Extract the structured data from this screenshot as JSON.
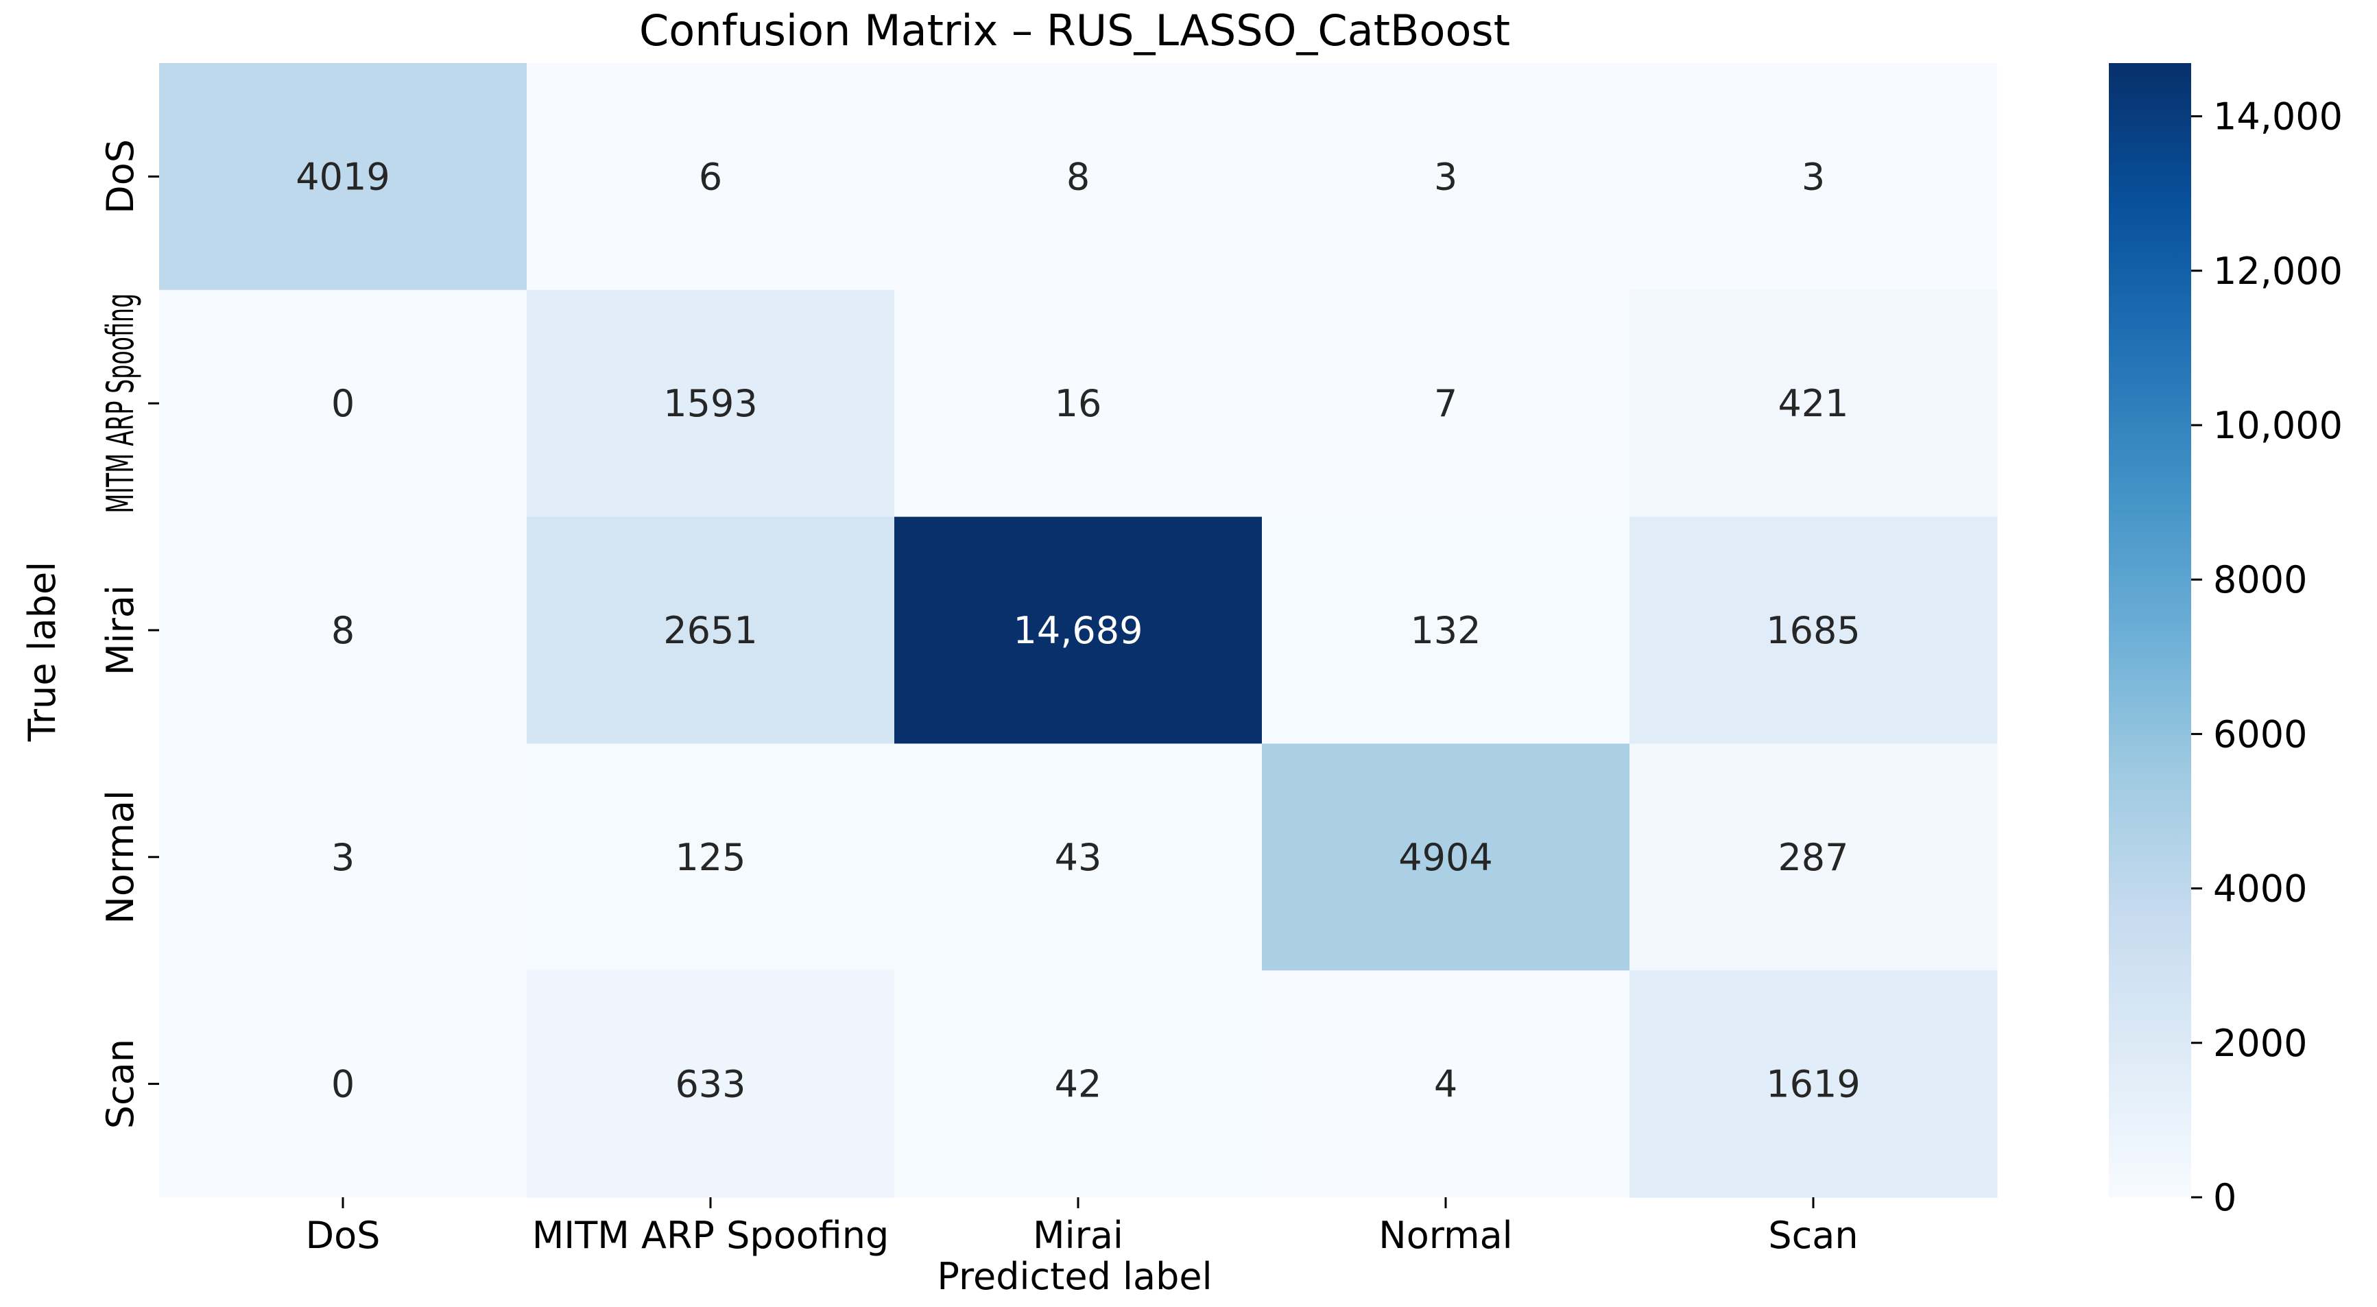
{
  "chart_data": {
    "type": "heatmap",
    "title": "Confusion Matrix – RUS_LASSO_CatBoost",
    "xlabel": "Predicted label",
    "ylabel": "True label",
    "x_categories": [
      "DoS",
      "MITM ARP Spoofing",
      "Mirai",
      "Normal",
      "Scan"
    ],
    "y_categories": [
      "DoS",
      "MITM ARP Spoofing",
      "Mirai",
      "Normal",
      "Scan"
    ],
    "values": [
      [
        4019,
        6,
        8,
        3,
        3
      ],
      [
        0,
        1593,
        16,
        7,
        421
      ],
      [
        8,
        2651,
        14689,
        132,
        1685
      ],
      [
        3,
        125,
        43,
        4904,
        287
      ],
      [
        0,
        633,
        42,
        4,
        1619
      ]
    ],
    "cell_labels": [
      [
        "4019",
        "6",
        "8",
        "3",
        "3"
      ],
      [
        "0",
        "1593",
        "16",
        "7",
        "421"
      ],
      [
        "8",
        "2651",
        "14,689",
        "132",
        "1685"
      ],
      [
        "3",
        "125",
        "43",
        "4904",
        "287"
      ],
      [
        "0",
        "633",
        "42",
        "4",
        "1619"
      ]
    ],
    "colormap": "Blues",
    "colormap_stops": [
      "#f7fbff",
      "#deebf7",
      "#c6dbef",
      "#9ecae1",
      "#6baed6",
      "#4292c6",
      "#2171b5",
      "#08519c",
      "#08306b"
    ],
    "vmin": 0,
    "vmax": 14689,
    "colorbar_ticks": [
      0,
      2000,
      4000,
      6000,
      8000,
      10000,
      12000,
      14000
    ],
    "colorbar_tick_labels": [
      "0",
      "2000",
      "4000",
      "6000",
      "8000",
      "10,000",
      "12,000",
      "14,000"
    ]
  }
}
